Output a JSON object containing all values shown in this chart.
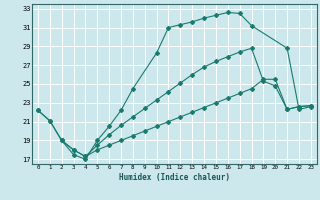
{
  "xlabel": "Humidex (Indice chaleur)",
  "bg_color": "#cce8ec",
  "grid_color": "#ffffff",
  "line_color": "#1a7a6e",
  "xlim": [
    -0.5,
    23.5
  ],
  "ylim": [
    16.5,
    33.5
  ],
  "yticks": [
    17,
    19,
    21,
    23,
    25,
    27,
    29,
    31,
    33
  ],
  "xticks": [
    0,
    1,
    2,
    3,
    4,
    5,
    6,
    7,
    8,
    9,
    10,
    11,
    12,
    13,
    14,
    15,
    16,
    17,
    18,
    19,
    20,
    21,
    22,
    23
  ],
  "curve1_x": [
    0,
    1,
    2,
    3,
    4,
    5,
    6,
    7,
    8,
    10,
    11,
    12,
    13,
    14,
    15,
    16,
    17,
    18,
    21,
    22,
    23
  ],
  "curve1_y": [
    22.2,
    21.1,
    19.0,
    17.5,
    17.0,
    19.0,
    20.5,
    22.2,
    24.5,
    28.3,
    31.0,
    31.3,
    31.6,
    32.0,
    32.3,
    32.6,
    32.5,
    31.2,
    28.8,
    22.3,
    22.6
  ],
  "curve2_x": [
    0,
    1,
    2,
    3,
    4,
    5,
    6,
    7,
    8,
    9,
    10,
    11,
    12,
    13,
    14,
    15,
    16,
    17,
    18,
    19,
    20,
    21,
    22,
    23
  ],
  "curve2_y": [
    22.2,
    21.1,
    19.0,
    18.0,
    17.3,
    18.5,
    19.6,
    20.6,
    21.5,
    22.4,
    23.3,
    24.2,
    25.1,
    26.0,
    26.8,
    27.4,
    27.9,
    28.4,
    28.8,
    25.3,
    24.8,
    22.3,
    22.6,
    22.7
  ],
  "curve3_x": [
    2,
    3,
    4,
    5,
    6,
    7,
    8,
    9,
    10,
    11,
    12,
    13,
    14,
    15,
    16,
    17,
    18,
    19,
    20,
    21,
    22,
    23
  ],
  "curve3_y": [
    19.0,
    18.0,
    17.3,
    18.0,
    18.5,
    19.0,
    19.5,
    20.0,
    20.5,
    21.0,
    21.5,
    22.0,
    22.5,
    23.0,
    23.5,
    24.0,
    24.5,
    25.5,
    25.5,
    22.3,
    22.6,
    22.7
  ]
}
